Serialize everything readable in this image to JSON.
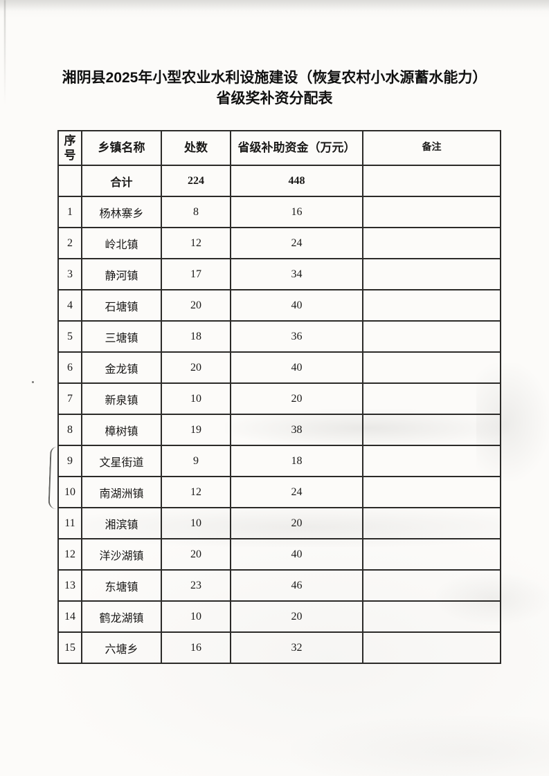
{
  "document": {
    "title_line1": "湘阴县2025年小型农业水利设施建设（恢复农村小水源蓄水能力）",
    "title_line2": "省级奖补资分配表"
  },
  "table": {
    "headers": {
      "index": "序号",
      "township": "乡镇名称",
      "count": "处数",
      "subsidy": "省级补助资金（万元）",
      "remark": "备注"
    },
    "total_row": {
      "index": "",
      "township": "合计",
      "count": "224",
      "subsidy": "448",
      "remark": ""
    },
    "rows": [
      {
        "index": "1",
        "township": "杨林寨乡",
        "count": "8",
        "subsidy": "16",
        "remark": ""
      },
      {
        "index": "2",
        "township": "岭北镇",
        "count": "12",
        "subsidy": "24",
        "remark": ""
      },
      {
        "index": "3",
        "township": "静河镇",
        "count": "17",
        "subsidy": "34",
        "remark": ""
      },
      {
        "index": "4",
        "township": "石塘镇",
        "count": "20",
        "subsidy": "40",
        "remark": ""
      },
      {
        "index": "5",
        "township": "三塘镇",
        "count": "18",
        "subsidy": "36",
        "remark": ""
      },
      {
        "index": "6",
        "township": "金龙镇",
        "count": "20",
        "subsidy": "40",
        "remark": ""
      },
      {
        "index": "7",
        "township": "新泉镇",
        "count": "10",
        "subsidy": "20",
        "remark": ""
      },
      {
        "index": "8",
        "township": "樟树镇",
        "count": "19",
        "subsidy": "38",
        "remark": ""
      },
      {
        "index": "9",
        "township": "文星街道",
        "count": "9",
        "subsidy": "18",
        "remark": ""
      },
      {
        "index": "10",
        "township": "南湖洲镇",
        "count": "12",
        "subsidy": "24",
        "remark": ""
      },
      {
        "index": "11",
        "township": "湘滨镇",
        "count": "10",
        "subsidy": "20",
        "remark": ""
      },
      {
        "index": "12",
        "township": "洋沙湖镇",
        "count": "20",
        "subsidy": "40",
        "remark": ""
      },
      {
        "index": "13",
        "township": "东塘镇",
        "count": "23",
        "subsidy": "46",
        "remark": ""
      },
      {
        "index": "14",
        "township": "鹤龙湖镇",
        "count": "10",
        "subsidy": "20",
        "remark": ""
      },
      {
        "index": "15",
        "township": "六塘乡",
        "count": "16",
        "subsidy": "32",
        "remark": ""
      }
    ]
  }
}
